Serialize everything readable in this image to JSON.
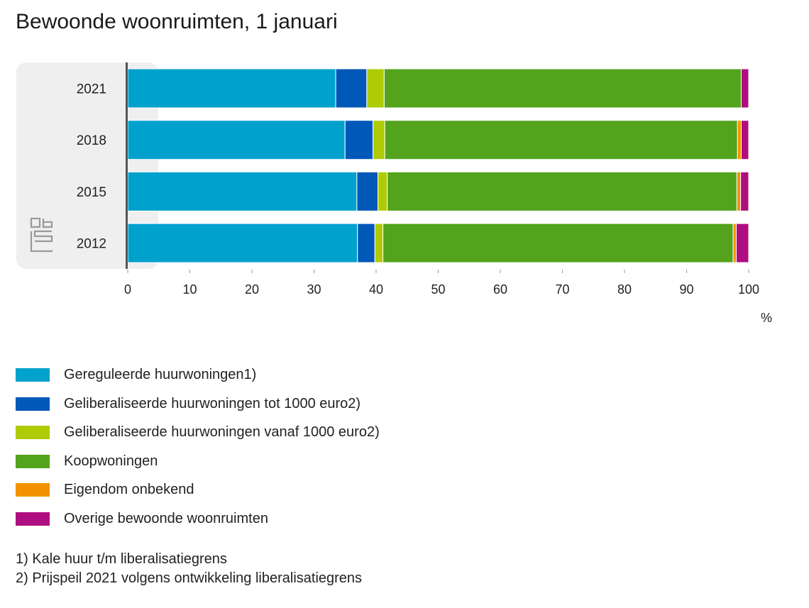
{
  "chart_data": {
    "type": "bar",
    "orientation": "horizontal",
    "stacked": true,
    "title": "Bewoonde woonruimten, 1 januari",
    "xlabel": "%",
    "ylabel": "",
    "xlim": [
      0,
      100
    ],
    "xticks": [
      "0",
      "10",
      "20",
      "30",
      "40",
      "50",
      "60",
      "70",
      "80",
      "90",
      "100"
    ],
    "categories": [
      "2021",
      "2018",
      "2015",
      "2012"
    ],
    "series": [
      {
        "name": "Gereguleerde huurwoningen1)",
        "color": "#00a1cd",
        "values": [
          33.5,
          35.0,
          36.9,
          37.0
        ]
      },
      {
        "name": "Geliberaliseerde huurwoningen tot 1000 euro2)",
        "color": "#0058b8",
        "values": [
          5.0,
          4.5,
          3.4,
          2.8
        ]
      },
      {
        "name": "Geliberaliseerde huurwoningen vanaf 1000 euro2)",
        "color": "#afcb05",
        "values": [
          2.8,
          1.9,
          1.5,
          1.3
        ]
      },
      {
        "name": "Koopwoningen",
        "color": "#53a31d",
        "values": [
          57.5,
          56.8,
          56.3,
          56.4
        ]
      },
      {
        "name": "Eigendom onbekend",
        "color": "#f39200",
        "values": [
          0.0,
          0.6,
          0.6,
          0.5
        ]
      },
      {
        "name": "Overige bewoonde woonruimten",
        "color": "#af0e80",
        "values": [
          1.2,
          1.2,
          1.3,
          2.0
        ]
      }
    ],
    "grid": false,
    "legend_position": "bottom"
  },
  "footnotes": [
    "1) Kale huur t/m liberalisatiegrens",
    "2) Prijspeil 2021 volgens ontwikkeling liberalisatiegrens"
  ],
  "logo": "cbs-logo"
}
